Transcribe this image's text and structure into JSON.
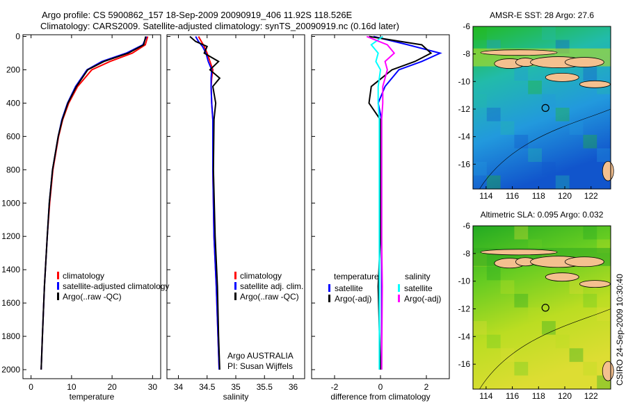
{
  "title_line1": "Argo profile: CS 5900862_157 18-Sep-2009 20090919_406 11.92S 118.526E",
  "title_line2": "Climatology: CARS2009. Satellite-adjusted climatology: synTS_20090919.nc (0.16d later)",
  "side_label": "CSIRO 24-Sep-2009 10:30:40",
  "colors": {
    "climatology": "#ff0000",
    "satellite": "#0000ff",
    "argo": "#000000",
    "sal_sat": "#00ffff",
    "sal_argo": "#ff00ff",
    "land": "#f4c08f"
  },
  "chart_data": [
    {
      "type": "line",
      "xlabel": "temperature",
      "ylabel": "",
      "xlim": [
        -2,
        32
      ],
      "ylim": [
        2050,
        0
      ],
      "xticks": [
        0,
        10,
        20,
        30
      ],
      "yticks": [
        0,
        200,
        400,
        600,
        800,
        1000,
        1200,
        1400,
        1600,
        1800,
        2000
      ],
      "legend": [
        "climatology",
        "satellite-adjusted climatology",
        "Argo(..raw -QC)"
      ],
      "depth": [
        0,
        50,
        100,
        150,
        200,
        300,
        400,
        500,
        600,
        800,
        1000,
        1200,
        1500,
        1800,
        2000
      ],
      "series": [
        {
          "name": "climatology",
          "color": "#ff0000",
          "values": [
            28.8,
            28.2,
            25,
            19.5,
            15,
            11.5,
            9.3,
            7.8,
            6.8,
            5.4,
            4.6,
            4,
            3.3,
            2.8,
            2.5
          ]
        },
        {
          "name": "satellite-adjusted climatology",
          "color": "#0000ff",
          "values": [
            28.5,
            27.6,
            23.5,
            17.5,
            13.8,
            11,
            9,
            7.6,
            6.7,
            5.3,
            4.5,
            4,
            3.3,
            2.8,
            2.5
          ]
        },
        {
          "name": "Argo(..raw -QC)",
          "color": "#000000",
          "values": [
            28.3,
            27.8,
            24,
            18,
            14,
            11.2,
            9.1,
            7.7,
            6.7,
            5.3,
            4.5,
            4,
            3.3,
            2.8,
            2.5
          ]
        }
      ]
    },
    {
      "type": "line",
      "xlabel": "salinity",
      "xlim": [
        33.8,
        36.2
      ],
      "ylim": [
        2050,
        0
      ],
      "xticks": [
        34,
        34.5,
        35,
        35.5,
        36
      ],
      "legend": [
        "climatology",
        "satellite adj. clim.",
        "Argo(..raw -QC)"
      ],
      "annotation": [
        "Argo AUSTRALIA",
        "PI: Susan Wijffels"
      ],
      "depth": [
        0,
        30,
        60,
        100,
        150,
        200,
        250,
        300,
        400,
        500,
        800,
        1200,
        1500,
        1800,
        2000
      ],
      "series": [
        {
          "name": "climatology",
          "color": "#ff0000",
          "values": [
            34.35,
            34.4,
            34.45,
            34.5,
            34.55,
            34.6,
            34.58,
            34.57,
            34.58,
            34.6,
            34.6,
            34.62,
            34.66,
            34.69,
            34.71
          ]
        },
        {
          "name": "satellite adj. clim.",
          "color": "#0000ff",
          "values": [
            34.3,
            34.35,
            34.42,
            34.48,
            34.52,
            34.58,
            34.57,
            34.57,
            34.58,
            34.6,
            34.6,
            34.62,
            34.66,
            34.69,
            34.71
          ]
        },
        {
          "name": "Argo(..raw -QC)",
          "color": "#000000",
          "values": [
            34.2,
            34.3,
            34.5,
            34.45,
            34.7,
            34.55,
            34.72,
            34.6,
            34.65,
            34.62,
            34.61,
            34.64,
            34.68,
            34.7,
            34.72
          ]
        }
      ]
    },
    {
      "type": "line",
      "xlabel": "difference from climatology",
      "xlim": [
        -3,
        3
      ],
      "ylim": [
        2050,
        0
      ],
      "xticks": [
        -2,
        0,
        2
      ],
      "legend": {
        "temperature": [
          "satellite",
          "Argo(-adj)"
        ],
        "salinity": [
          "satellite",
          "Argo(-adj)"
        ],
        "headers": [
          "temperature",
          "salinity"
        ]
      },
      "depth": [
        0,
        50,
        100,
        150,
        200,
        300,
        400,
        500,
        800,
        1200,
        1500,
        2000
      ],
      "series": [
        {
          "name": "temperature satellite",
          "color": "#0000ff",
          "values": [
            -0.3,
            1.2,
            2.6,
            1.8,
            0.8,
            0.2,
            -0.1,
            0.05,
            0.05,
            0.05,
            0.05,
            0.05
          ]
        },
        {
          "name": "temperature Argo(-adj)",
          "color": "#000000",
          "values": [
            -0.5,
            1.8,
            2.2,
            1.5,
            0.5,
            -0.4,
            -0.5,
            0,
            0,
            0,
            -0.1,
            0
          ]
        },
        {
          "name": "salinity satellite",
          "color": "#00ffff",
          "values": [
            0.1,
            -0.4,
            -0.1,
            -0.2,
            0,
            -0.1,
            -0.1,
            -0.05,
            -0.05,
            -0.05,
            -0.05,
            -0.05
          ]
        },
        {
          "name": "salinity Argo(-adj)",
          "color": "#ff00ff",
          "values": [
            -0.6,
            0.3,
            0.6,
            0.2,
            0.3,
            0.1,
            0.1,
            0.05,
            0.05,
            0.05,
            0.08,
            0.05
          ]
        }
      ]
    }
  ],
  "maps": [
    {
      "title": "AMSR-E SST: 28 Argo: 27.6",
      "lon_ticks": [
        114,
        116,
        118,
        120,
        122
      ],
      "lat_ticks": [
        -6,
        -8,
        -10,
        -12,
        -14,
        -16
      ],
      "lonlim": [
        113,
        123.5
      ],
      "latlim": [
        -17.8,
        -6
      ],
      "marker": [
        118.526,
        -11.92
      ],
      "colors": [
        "#22bb22",
        "#22bbaa",
        "#2299dd",
        "#1155cc"
      ]
    },
    {
      "title": "Altimetric SLA: 0.095 Argo: 0.032",
      "lon_ticks": [
        114,
        116,
        118,
        120,
        122
      ],
      "lat_ticks": [
        -6,
        -8,
        -10,
        -12,
        -14,
        -16
      ],
      "lonlim": [
        113,
        123.5
      ],
      "latlim": [
        -17.8,
        -6
      ],
      "marker": [
        118.526,
        -11.92
      ],
      "colors": [
        "#22aa22",
        "#66cc22",
        "#bbdd22",
        "#dddd33"
      ]
    }
  ]
}
